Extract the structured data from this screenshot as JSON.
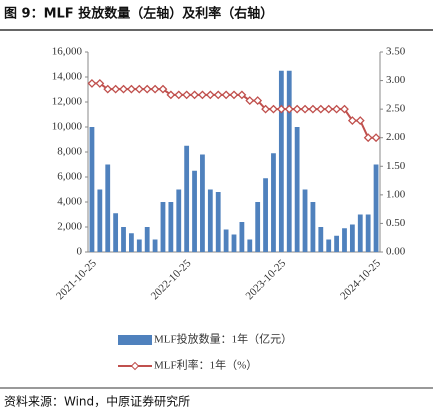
{
  "chart_data": {
    "type": "bar_line",
    "title": "图 9：MLF 投放数量（左轴）及利率（右轴）",
    "source": "资料来源：Wind，中原证券研究所",
    "categories": [
      "2021-10-25",
      null,
      null,
      null,
      null,
      null,
      null,
      null,
      null,
      null,
      null,
      null,
      "2022-10-25",
      null,
      null,
      null,
      null,
      null,
      null,
      null,
      null,
      null,
      null,
      null,
      "2023-10-25",
      null,
      null,
      null,
      null,
      null,
      null,
      null,
      null,
      null,
      null,
      null,
      "2024-10-25"
    ],
    "series": [
      {
        "name": "MLF投放数量：1年（亿元）",
        "color": "#4f81bd",
        "axis": "y",
        "values": [
          10000,
          5000,
          7000,
          3100,
          2000,
          1500,
          1000,
          2000,
          1000,
          4000,
          4000,
          5000,
          8500,
          6500,
          7800,
          5000,
          4800,
          1800,
          1400,
          2400,
          1000,
          4000,
          5900,
          7900,
          14500,
          14500,
          10000,
          5000,
          4000,
          2000,
          1000,
          1300,
          1900,
          2200,
          3000,
          3000,
          7000
        ]
      },
      {
        "name": "MLF利率：1年（%）",
        "color": "#c0504d",
        "axis": "y2",
        "values": [
          2.95,
          2.95,
          2.85,
          2.85,
          2.85,
          2.85,
          2.85,
          2.85,
          2.85,
          2.85,
          2.75,
          2.75,
          2.75,
          2.75,
          2.75,
          2.75,
          2.75,
          2.75,
          2.75,
          2.75,
          2.65,
          2.65,
          2.5,
          2.5,
          2.5,
          2.5,
          2.5,
          2.5,
          2.5,
          2.5,
          2.5,
          2.5,
          2.5,
          2.3,
          2.3,
          2.0,
          2.0
        ]
      }
    ],
    "ylim": [
      0,
      16000
    ],
    "yticks": [
      0,
      {
        "value": 2000,
        "label": "2,000"
      },
      {
        "value": 4000,
        "label": "4,000"
      },
      {
        "value": 6000,
        "label": "6,000"
      },
      {
        "value": 8000,
        "label": "8,000"
      },
      {
        "value": 10000,
        "label": "10,000"
      },
      {
        "value": 12000,
        "label": "12,000"
      },
      {
        "value": 14000,
        "label": "14,000"
      },
      {
        "value": 16000,
        "label": "16,000"
      }
    ],
    "y2lim": [
      0,
      3.5
    ],
    "y2ticks": [
      {
        "value": 0,
        "label": "0.00"
      },
      {
        "value": 0.5,
        "label": "0.50"
      },
      {
        "value": 1,
        "label": "1.00"
      },
      {
        "value": 1.5,
        "label": "1.50"
      },
      {
        "value": 2,
        "label": "2.00"
      },
      {
        "value": 2.5,
        "label": "2.50"
      },
      {
        "value": 3,
        "label": "3.00"
      },
      {
        "value": 3.5,
        "label": "3.50"
      }
    ],
    "legend": "bottom"
  }
}
